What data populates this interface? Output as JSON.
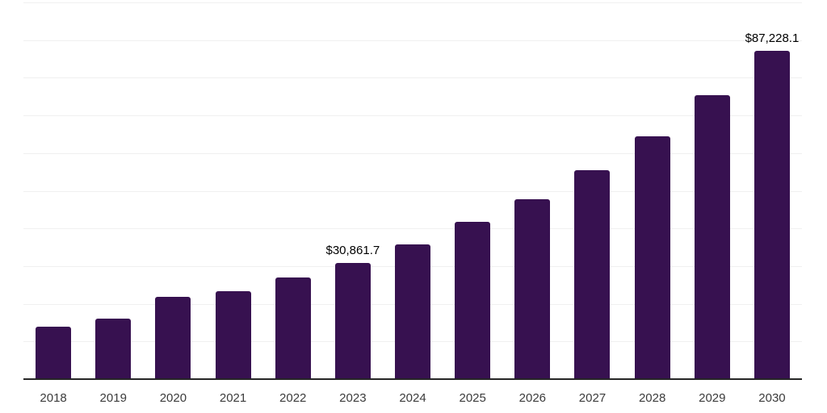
{
  "chart_data": {
    "type": "bar",
    "title": "",
    "xlabel": "",
    "ylabel": "",
    "categories": [
      "2018",
      "2019",
      "2020",
      "2021",
      "2022",
      "2023",
      "2024",
      "2025",
      "2026",
      "2027",
      "2028",
      "2029",
      "2030"
    ],
    "values": [
      13900,
      16000,
      21800,
      23300,
      27000,
      30861.7,
      35700,
      41700,
      47700,
      55400,
      64400,
      75300,
      87228.1
    ],
    "value_labels": [
      {
        "index": 5,
        "text": "$30,861.7"
      },
      {
        "index": 12,
        "text": "$87,228.1"
      }
    ],
    "ylim": [
      0,
      100000
    ],
    "gridline_interval": 10000,
    "grid": "horizontal-only",
    "legend": "none",
    "y_axis_tick_labels_visible": false
  },
  "style": {
    "background": "#ffffff",
    "bar_color": "#371150",
    "gridline_color": "#f0f0f0",
    "axis_line_color": "#262626",
    "value_label_color": "#000000",
    "tick_label_color": "#3b3b3b"
  }
}
